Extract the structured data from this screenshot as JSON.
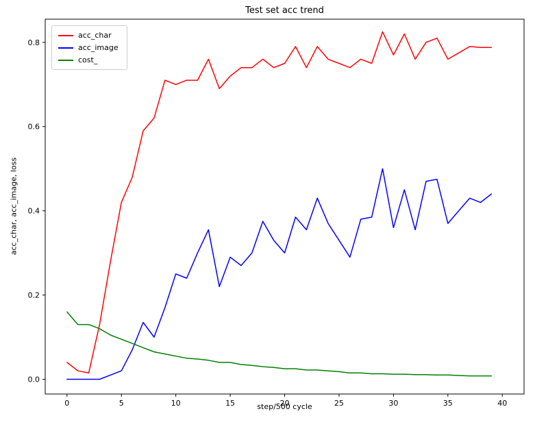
{
  "chart_data": {
    "type": "line",
    "title": "Test set acc trend",
    "xlabel": "step/500 cycle",
    "ylabel": "acc_char, acc_image, loss",
    "grid": false,
    "legend_position": "upper left",
    "xlim": [
      -2,
      42
    ],
    "ylim": [
      -0.035,
      0.855
    ],
    "xticks": [
      0,
      5,
      10,
      15,
      20,
      25,
      30,
      35,
      40
    ],
    "yticks": [
      0.0,
      0.2,
      0.4,
      0.6,
      0.8
    ],
    "x": [
      0,
      1,
      2,
      3,
      4,
      5,
      6,
      7,
      8,
      9,
      10,
      11,
      12,
      13,
      14,
      15,
      16,
      17,
      18,
      19,
      20,
      21,
      22,
      23,
      24,
      25,
      26,
      27,
      28,
      29,
      30,
      31,
      32,
      33,
      34,
      35,
      36,
      37,
      38,
      39
    ],
    "series": [
      {
        "name": "acc_char",
        "color": "#ff0000",
        "values": [
          0.04,
          0.02,
          0.015,
          0.13,
          0.28,
          0.42,
          0.48,
          0.59,
          0.62,
          0.71,
          0.7,
          0.71,
          0.71,
          0.76,
          0.69,
          0.72,
          0.74,
          0.74,
          0.76,
          0.74,
          0.75,
          0.79,
          0.74,
          0.79,
          0.76,
          0.75,
          0.74,
          0.76,
          0.75,
          0.825,
          0.77,
          0.82,
          0.76,
          0.8,
          0.81,
          0.76,
          0.775,
          0.79,
          0.788,
          0.788
        ]
      },
      {
        "name": "acc_image",
        "color": "#0000ff",
        "values": [
          0.0,
          0.0,
          0.0,
          0.0,
          0.01,
          0.02,
          0.07,
          0.135,
          0.1,
          0.17,
          0.25,
          0.24,
          0.3,
          0.355,
          0.22,
          0.29,
          0.27,
          0.3,
          0.375,
          0.33,
          0.3,
          0.385,
          0.355,
          0.43,
          0.37,
          0.33,
          0.29,
          0.38,
          0.385,
          0.5,
          0.36,
          0.45,
          0.355,
          0.47,
          0.475,
          0.37,
          0.4,
          0.43,
          0.42,
          0.44
        ]
      },
      {
        "name": "cost_",
        "color": "#008000",
        "values": [
          0.16,
          0.13,
          0.13,
          0.12,
          0.105,
          0.095,
          0.085,
          0.075,
          0.065,
          0.06,
          0.055,
          0.05,
          0.048,
          0.045,
          0.04,
          0.04,
          0.035,
          0.033,
          0.03,
          0.028,
          0.025,
          0.025,
          0.022,
          0.022,
          0.02,
          0.018,
          0.015,
          0.015,
          0.013,
          0.013,
          0.012,
          0.012,
          0.011,
          0.011,
          0.01,
          0.01,
          0.009,
          0.008,
          0.008,
          0.008
        ]
      }
    ]
  }
}
